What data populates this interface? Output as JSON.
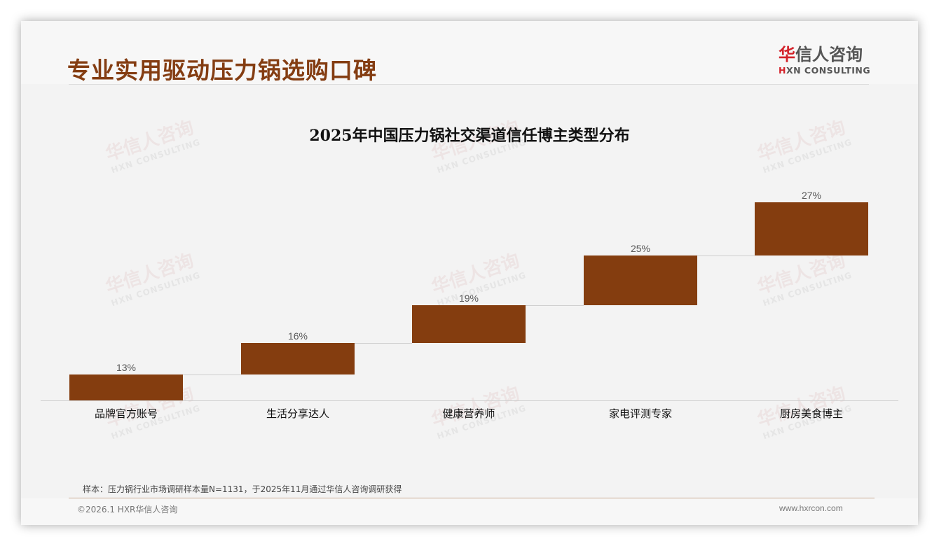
{
  "header": {
    "title": "专业实用驱动压力锅选购口碑",
    "logo": {
      "cn_accent": "华",
      "cn_rest": "信人咨询",
      "en_accent": "H",
      "en_rest": "XN CONSULTING"
    }
  },
  "watermark": {
    "cn": "华信人咨询",
    "en": "HXN CONSULTING"
  },
  "colors": {
    "bar": "#843d0f",
    "title": "#843d12",
    "logo_accent": "#d3222a"
  },
  "chart_data": {
    "type": "bar",
    "subtype": "waterfall",
    "title": "2025年中国压力锅社交渠道信任博主类型分布",
    "categories": [
      "品牌官方账号",
      "生活分享达人",
      "健康营养师",
      "家电评测专家",
      "厨房美食博主"
    ],
    "values": [
      13,
      16,
      19,
      25,
      27
    ],
    "labels": [
      "13%",
      "16%",
      "19%",
      "25%",
      "27%"
    ],
    "cumulative_start": [
      0,
      13,
      29,
      48,
      73
    ],
    "xlabel": "",
    "ylabel": "",
    "ylim": [
      0,
      100
    ],
    "grid": false,
    "legend": "none"
  },
  "footer": {
    "note": "样本：压力锅行业市场调研样本量N=1131，于2025年11月通过华信人咨询调研获得",
    "copyright": "©2026.1 HXR华信人咨询",
    "website": "www.hxrcon.com"
  }
}
